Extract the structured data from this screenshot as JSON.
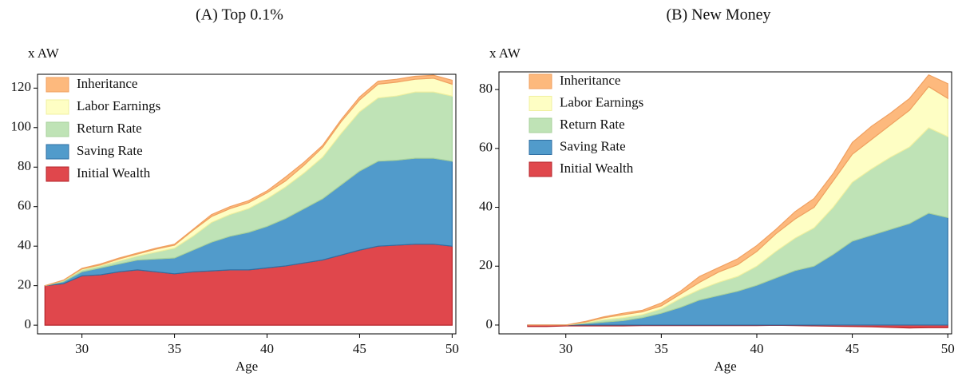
{
  "chart_data": [
    {
      "type": "area",
      "title": "(A) Top 0.1%",
      "xlabel": "Age",
      "ylabel": "x AW",
      "x": [
        28,
        29,
        30,
        31,
        32,
        33,
        34,
        35,
        36,
        37,
        38,
        39,
        40,
        41,
        42,
        43,
        44,
        45,
        46,
        47,
        48,
        49,
        50
      ],
      "xlim": [
        27.6,
        50.2
      ],
      "xticks": [
        30,
        35,
        40,
        45,
        50
      ],
      "ylim": [
        -4.4,
        127
      ],
      "yticks": [
        0,
        20,
        40,
        60,
        80,
        100,
        120
      ],
      "legend": "upper left",
      "series": [
        {
          "name": "Initial Wealth",
          "color": "#e0474c",
          "values": [
            20,
            21,
            25,
            25.5,
            27,
            28,
            27,
            26,
            27,
            27.5,
            28,
            28,
            29,
            30,
            31.5,
            33,
            35.5,
            38,
            40,
            40.5,
            41,
            41,
            40
          ]
        },
        {
          "name": "Saving Rate",
          "color": "#519bcb",
          "values": [
            0,
            1,
            2,
            3.5,
            4,
            5,
            6.5,
            8,
            11,
            14.5,
            17,
            19,
            21,
            24,
            27.5,
            31,
            35.5,
            40,
            43,
            43,
            43.5,
            43.5,
            43
          ]
        },
        {
          "name": "Return Rate",
          "color": "#bfe3b6",
          "values": [
            0,
            0.5,
            1,
            1,
            1.5,
            2,
            3.5,
            5,
            7,
            10,
            11,
            12,
            14,
            16,
            18,
            21,
            26,
            30,
            32,
            32.5,
            33.5,
            33.5,
            33
          ]
        },
        {
          "name": "Labor Earnings",
          "color": "#fefec4",
          "values": [
            0,
            0.2,
            0.5,
            0.5,
            1,
            1,
            1.5,
            1.5,
            3,
            3,
            3,
            3,
            3,
            3,
            4,
            5,
            6,
            6,
            7,
            7,
            6.5,
            7,
            6
          ]
        },
        {
          "name": "Inheritance",
          "color": "#fdb97d",
          "values": [
            0,
            0.1,
            0.3,
            0.5,
            0.5,
            0.5,
            0.5,
            0.5,
            0.5,
            1,
            1,
            1,
            1,
            2,
            1.5,
            1,
            1,
            1.5,
            1.5,
            1.5,
            1.5,
            1.5,
            2
          ]
        }
      ]
    },
    {
      "type": "area",
      "title": "(B) New Money",
      "xlabel": "Age",
      "ylabel": "x AW",
      "x": [
        28,
        29,
        30,
        31,
        32,
        33,
        34,
        35,
        36,
        37,
        38,
        39,
        40,
        41,
        42,
        43,
        44,
        45,
        46,
        47,
        48,
        49,
        50
      ],
      "xlim": [
        26.5,
        50.2
      ],
      "xticks": [
        30,
        35,
        40,
        45,
        50
      ],
      "ylim": [
        -3,
        86
      ],
      "yticks": [
        0,
        20,
        40,
        60,
        80
      ],
      "legend": "upper left",
      "series": [
        {
          "name": "Initial Wealth",
          "color": "#e0474c",
          "values": [
            -0.5,
            -0.5,
            -0.3,
            -0.3,
            -0.3,
            -0.3,
            -0.2,
            -0.2,
            -0.2,
            -0.2,
            -0.2,
            -0.2,
            -0.2,
            -0.1,
            -0.2,
            -0.3,
            -0.4,
            -0.5,
            -0.6,
            -0.8,
            -1,
            -0.9,
            -0.9
          ]
        },
        {
          "name": "Saving Rate",
          "color": "#519bcb",
          "values": [
            0,
            0,
            0,
            0.5,
            1,
            1.5,
            2.5,
            4,
            6,
            8.5,
            10,
            11.5,
            13.5,
            16,
            18.5,
            20,
            24,
            28.5,
            30.5,
            32.5,
            34.5,
            38,
            36.5
          ]
        },
        {
          "name": "Return Rate",
          "color": "#bfe3b6",
          "values": [
            0,
            0,
            0,
            0.3,
            0.8,
            1,
            1,
            1.5,
            3,
            3.5,
            4.5,
            5,
            6.5,
            9,
            11,
            13,
            16,
            20,
            22.5,
            24.5,
            26,
            29,
            27.5
          ]
        },
        {
          "name": "Labor Earnings",
          "color": "#fefec4",
          "values": [
            0,
            0,
            0,
            0.2,
            0.7,
            1,
            1,
            1,
            1.5,
            2.5,
            3.5,
            4,
            5,
            6,
            6.5,
            7,
            9,
            9.5,
            10,
            11,
            12.5,
            14,
            13
          ]
        },
        {
          "name": "Inheritance",
          "color": "#fdb97d",
          "values": [
            0,
            0,
            0,
            0.2,
            0.3,
            0.5,
            0.5,
            1,
            1,
            2,
            1.5,
            2,
            2,
            1.5,
            2.5,
            3,
            2.5,
            4,
            4.5,
            4,
            4,
            4,
            5
          ]
        }
      ]
    }
  ]
}
